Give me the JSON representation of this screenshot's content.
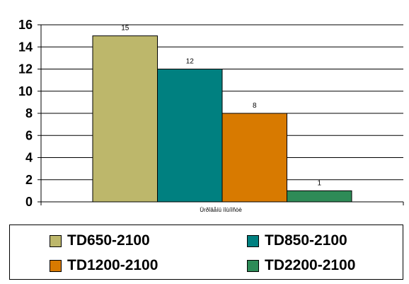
{
  "chart_data": {
    "type": "bar",
    "categories": [
      "Ürðîâåíü ìîùíîñòè"
    ],
    "series": [
      {
        "name": "TD650-2100",
        "values": [
          15
        ],
        "color": "#BDB76B"
      },
      {
        "name": "TD850-2100",
        "values": [
          12
        ],
        "color": "#008080"
      },
      {
        "name": "TD1200-2100",
        "values": [
          8
        ],
        "color": "#D87A00"
      },
      {
        "name": "TD2200-2100",
        "values": [
          1
        ],
        "color": "#2E8B57"
      }
    ],
    "data_labels": [
      "15",
      "12",
      "8",
      "1"
    ],
    "title": "",
    "xlabel": "",
    "ylabel": "",
    "ylim": [
      0,
      16
    ],
    "yticks": [
      0,
      2,
      4,
      6,
      8,
      10,
      12,
      14,
      16
    ],
    "grid": true,
    "legend_position": "bottom"
  }
}
